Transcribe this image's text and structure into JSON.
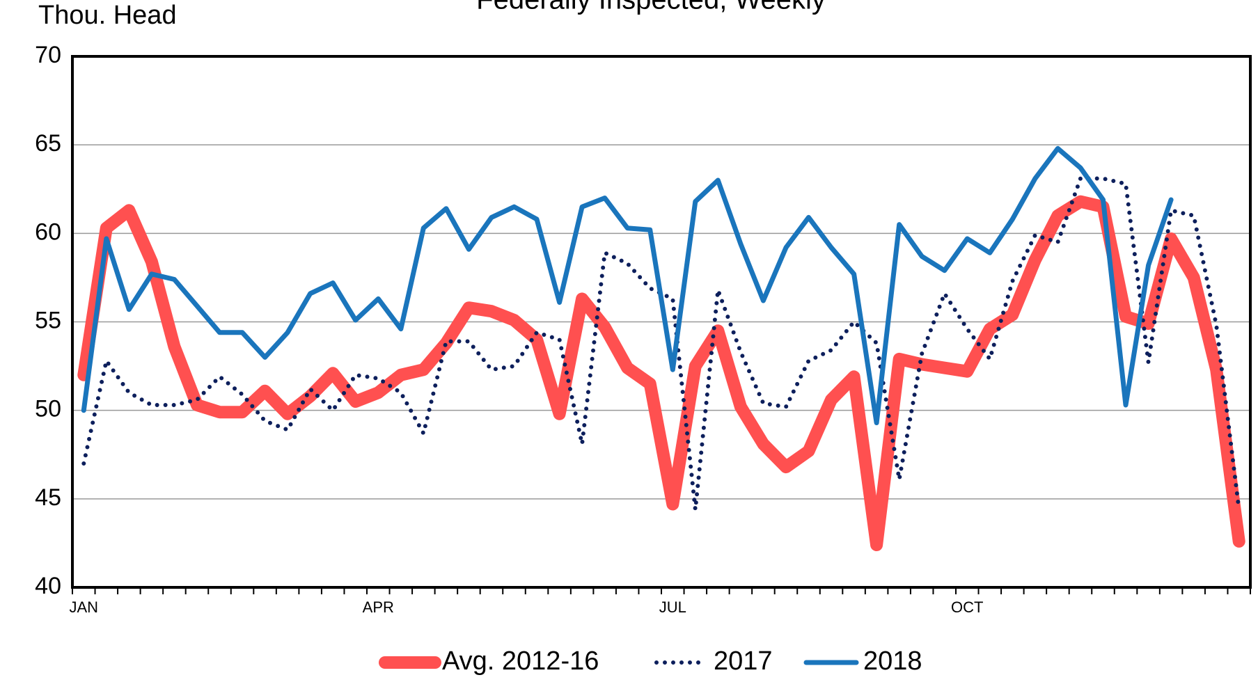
{
  "chart_data": {
    "type": "line",
    "title": "Federally Inspected, Weekly",
    "y_label": "Thou. Head",
    "categories": [
      "JAN",
      null,
      null,
      null,
      null,
      null,
      null,
      null,
      null,
      null,
      null,
      null,
      null,
      "APR",
      null,
      null,
      null,
      null,
      null,
      null,
      null,
      null,
      null,
      null,
      null,
      null,
      "JUL",
      null,
      null,
      null,
      null,
      null,
      null,
      null,
      null,
      null,
      null,
      null,
      null,
      "OCT",
      null,
      null,
      null,
      null,
      null,
      null,
      null,
      null,
      null,
      null,
      null,
      null
    ],
    "ylim": [
      40,
      70
    ],
    "yticks": [
      40,
      45,
      50,
      55,
      60,
      65,
      70
    ],
    "grid": true,
    "legend": "bottom",
    "series": [
      {
        "name": "Avg. 2012-16",
        "color": "#ff5050",
        "line_style": "solid",
        "values": [
          52,
          60.3,
          61.3,
          58.4,
          53.6,
          50.3,
          49.9,
          49.9,
          51.1,
          49.8,
          50.8,
          52.1,
          50.5,
          51,
          52,
          52.3,
          53.8,
          55.8,
          55.6,
          55.1,
          54,
          49.8,
          56.3,
          54.7,
          52.4,
          51.5,
          44.7,
          52.5,
          54.5,
          50.2,
          48.1,
          46.8,
          47.7,
          50.6,
          51.9,
          42.4,
          52.9,
          52.6,
          52.4,
          52.2,
          54.6,
          55.4,
          58.5,
          61,
          61.8,
          61.5,
          55.3,
          54.9,
          59.7,
          57.5,
          52.3,
          42.6
        ]
      },
      {
        "name": "2017",
        "color": "#0d1f5c",
        "line_style": "dotted",
        "values": [
          47,
          52.8,
          51,
          50.3,
          50.3,
          50.6,
          51.9,
          50.9,
          49.4,
          48.9,
          51.2,
          50,
          52,
          51.8,
          51,
          48.7,
          53.9,
          53.9,
          52.3,
          52.5,
          54.4,
          54,
          48.1,
          58.9,
          58.3,
          56.9,
          56.3,
          44.4,
          56.8,
          53.3,
          50.4,
          50.2,
          52.8,
          53.4,
          55,
          53.8,
          46.1,
          53.2,
          56.6,
          54.6,
          52.9,
          57.3,
          59.9,
          59.5,
          63.1,
          63.1,
          62.8,
          52.7,
          61.3,
          61,
          54.8,
          44.4
        ]
      },
      {
        "name": "2018",
        "color": "#1a75bc",
        "line_style": "solid",
        "values": [
          50,
          59.7,
          55.7,
          57.7,
          57.4,
          55.9,
          54.4,
          54.4,
          53,
          54.4,
          56.6,
          57.2,
          55.1,
          56.3,
          54.6,
          60.3,
          61.4,
          59.1,
          60.9,
          61.5,
          60.8,
          56.1,
          61.5,
          62,
          60.3,
          60.2,
          52.3,
          61.8,
          63,
          59.4,
          56.2,
          59.2,
          60.9,
          59.2,
          57.7,
          49.3,
          60.5,
          58.7,
          57.9,
          59.7,
          58.9,
          60.8,
          63.1,
          64.8,
          63.7,
          61.9,
          50.3,
          58.2,
          61.9,
          null,
          null,
          null
        ]
      }
    ]
  }
}
